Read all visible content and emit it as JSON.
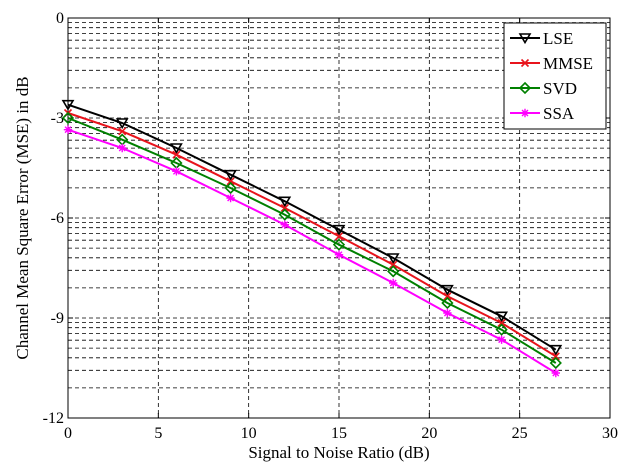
{
  "chart_data": {
    "type": "line",
    "title": "",
    "xlabel": "Signal to Noise Ratio (dB)",
    "ylabel": "Channel Mean Square Error (MSE) in dB",
    "xlim": [
      0,
      30
    ],
    "ylim": [
      -12,
      0
    ],
    "xticks": [
      0,
      5,
      10,
      15,
      20,
      25,
      30
    ],
    "yticks": [
      -12,
      -9,
      -6,
      -3,
      0
    ],
    "x_tick_labels": [
      "0",
      "5",
      "10",
      "15",
      "20",
      "25",
      "30"
    ],
    "y_tick_labels": [
      "-12",
      "-9",
      "-6",
      "-3",
      "0"
    ],
    "grid": true,
    "grid_style": "dashed, with minor (log-style) horizontal lines between major y ticks",
    "legend_position": "top-right",
    "x": [
      0,
      3,
      6,
      9,
      12,
      15,
      18,
      21,
      24,
      27
    ],
    "series": [
      {
        "name": "LSE",
        "color": "#000000",
        "marker": "triangle-down",
        "values": [
          -2.6,
          -3.15,
          -3.9,
          -4.7,
          -5.5,
          -6.35,
          -7.2,
          -8.15,
          -8.95,
          -9.95
        ]
      },
      {
        "name": "MMSE",
        "color": "#e8141c",
        "marker": "x",
        "values": [
          -2.85,
          -3.4,
          -4.1,
          -4.9,
          -5.7,
          -6.55,
          -7.4,
          -8.35,
          -9.15,
          -10.15
        ]
      },
      {
        "name": "SVD",
        "color": "#008000",
        "marker": "diamond",
        "values": [
          -3.0,
          -3.65,
          -4.35,
          -5.1,
          -5.9,
          -6.8,
          -7.6,
          -8.55,
          -9.35,
          -10.35
        ]
      },
      {
        "name": "SSA",
        "color": "#ff00ff",
        "marker": "asterisk",
        "values": [
          -3.35,
          -3.9,
          -4.6,
          -5.4,
          -6.2,
          -7.1,
          -7.95,
          -8.85,
          -9.65,
          -10.65
        ]
      }
    ]
  }
}
